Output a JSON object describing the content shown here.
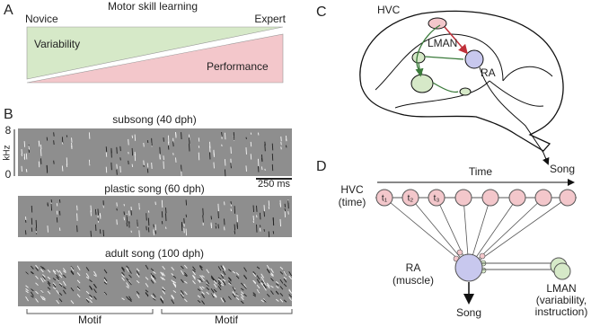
{
  "panel_a": {
    "letter": "A",
    "title": "Motor skill learning",
    "left_label": "Novice",
    "right_label": "Expert",
    "upper_label": "Variability",
    "lower_label": "Performance"
  },
  "panel_b": {
    "letter": "B",
    "y_top": "8",
    "y_unit": "kHz",
    "y_bottom": "0",
    "scale_bar": "250 ms",
    "spectrograms": [
      "subsong (40 dph)",
      "plastic song (60 dph)",
      "adult song (100 dph)"
    ],
    "motifs": [
      "Motif",
      "Motif"
    ]
  },
  "panel_c": {
    "letter": "C",
    "hvc": "HVC",
    "lman": "LMAN",
    "ra": "RA",
    "song": "Song"
  },
  "panel_d": {
    "letter": "D",
    "time": "Time",
    "hvc": [
      "HVC",
      "(time)"
    ],
    "hvc_nodes": [
      "t₁",
      "t₂",
      "t₃"
    ],
    "ra": [
      "RA",
      "(muscle)"
    ],
    "song": "Song",
    "lman": [
      "LMAN",
      "(variability,",
      "instruction)"
    ]
  }
}
